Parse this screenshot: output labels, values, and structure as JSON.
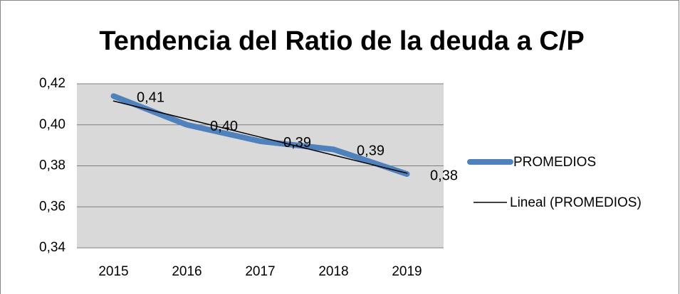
{
  "chart_data": {
    "type": "line",
    "title": "Tendencia del Ratio de la deuda a C/P",
    "categories": [
      "2015",
      "2016",
      "2017",
      "2018",
      "2019"
    ],
    "series": [
      {
        "name": "PROMEDIOS",
        "color": "#4f81bd",
        "values": [
          0.414,
          0.4,
          0.392,
          0.388,
          0.376
        ],
        "value_labels": [
          "0,41",
          "0,40",
          "0,39",
          "0,39",
          "0,38"
        ]
      },
      {
        "name": "Lineal (PROMEDIOS)",
        "color": "#000000",
        "values": [
          0.4116,
          0.4028,
          0.394,
          0.3852,
          0.3764
        ]
      }
    ],
    "ylim": [
      0.34,
      0.42
    ],
    "yticks": [
      {
        "value": 0.34,
        "label": "0,34"
      },
      {
        "value": 0.36,
        "label": "0,36"
      },
      {
        "value": 0.38,
        "label": "0,38"
      },
      {
        "value": 0.4,
        "label": "0,40"
      },
      {
        "value": 0.42,
        "label": "0,42"
      }
    ],
    "grid": true,
    "legend": "right"
  }
}
